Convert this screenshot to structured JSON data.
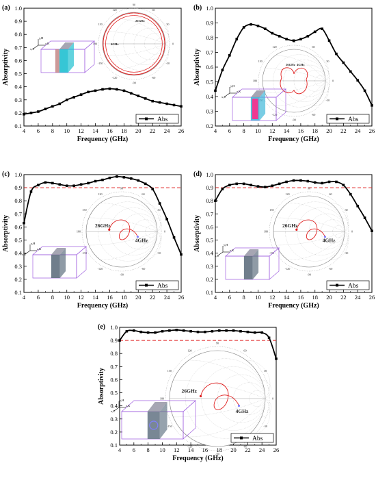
{
  "chart_data": [
    {
      "panel": "(a)",
      "type": "line",
      "xlabel": "Frequency (GHz)",
      "ylabel": "Absorptivity",
      "xlim": [
        4,
        26
      ],
      "ylim": [
        0.1,
        1.0
      ],
      "xticks": [
        "4",
        "6",
        "8",
        "10",
        "12",
        "14",
        "16",
        "18",
        "20",
        "22",
        "24",
        "26"
      ],
      "yticks": [
        "0.1",
        "0.2",
        "0.3",
        "0.4",
        "0.5",
        "0.6",
        "0.7",
        "0.8",
        "0.9",
        "1.0"
      ],
      "legend": "Abs",
      "legend_position": "bottom-right",
      "threshold": null,
      "series": [
        {
          "name": "Abs",
          "x": [
            4,
            5,
            6,
            7,
            8,
            9,
            10,
            11,
            12,
            13,
            14,
            15,
            16,
            17,
            18,
            19,
            20,
            21,
            22,
            23,
            24,
            25,
            26
          ],
          "y": [
            0.19,
            0.2,
            0.21,
            0.23,
            0.25,
            0.27,
            0.3,
            0.32,
            0.34,
            0.36,
            0.37,
            0.38,
            0.385,
            0.38,
            0.37,
            0.35,
            0.33,
            0.31,
            0.29,
            0.28,
            0.27,
            0.26,
            0.25
          ]
        }
      ],
      "smith_labels": [
        "4GHz",
        "26GHz"
      ],
      "axis_letters": [
        "y,H",
        "x,E",
        "z,K"
      ]
    },
    {
      "panel": "(b)",
      "type": "line",
      "xlabel": "Frequency (GHz)",
      "ylabel": "Absorptivity",
      "xlim": [
        4,
        26
      ],
      "ylim": [
        0.2,
        1.0
      ],
      "xticks": [
        "4",
        "6",
        "8",
        "10",
        "12",
        "14",
        "16",
        "18",
        "20",
        "22",
        "24",
        "26"
      ],
      "yticks": [
        "0.2",
        "0.3",
        "0.4",
        "0.5",
        "0.6",
        "0.7",
        "0.8",
        "0.9",
        "1.0"
      ],
      "legend": "Abs",
      "legend_position": "bottom-right",
      "threshold": null,
      "series": [
        {
          "name": "Abs",
          "x": [
            4,
            5,
            6,
            7,
            8,
            9,
            10,
            11,
            12,
            13,
            14,
            15,
            16,
            17,
            18,
            19,
            20,
            21,
            22,
            23,
            24,
            25,
            26
          ],
          "y": [
            0.44,
            0.58,
            0.68,
            0.79,
            0.87,
            0.89,
            0.88,
            0.86,
            0.83,
            0.81,
            0.79,
            0.78,
            0.79,
            0.81,
            0.84,
            0.86,
            0.78,
            0.69,
            0.63,
            0.57,
            0.51,
            0.44,
            0.34
          ]
        }
      ],
      "smith_labels": [
        "26GHz",
        "4GHz"
      ],
      "axis_letters": [
        "y,H",
        "x,E",
        "z,K"
      ]
    },
    {
      "panel": "(c)",
      "type": "line",
      "xlabel": "Frequency (GHz)",
      "ylabel": "Absorptivity",
      "xlim": [
        4,
        26
      ],
      "ylim": [
        0.1,
        1.0
      ],
      "xticks": [
        "4",
        "6",
        "8",
        "10",
        "12",
        "14",
        "16",
        "18",
        "20",
        "22",
        "24",
        "26"
      ],
      "yticks": [
        "0.1",
        "0.2",
        "0.3",
        "0.4",
        "0.5",
        "0.6",
        "0.7",
        "0.8",
        "0.9",
        "1.0"
      ],
      "legend": "Abs",
      "legend_position": "bottom-right",
      "threshold": 0.9,
      "series": [
        {
          "name": "Abs",
          "x": [
            4,
            5,
            6,
            7,
            8,
            9,
            10,
            11,
            12,
            13,
            14,
            15,
            16,
            17,
            18,
            19,
            20,
            21,
            22,
            23,
            24,
            25,
            26
          ],
          "y": [
            0.63,
            0.87,
            0.92,
            0.94,
            0.935,
            0.925,
            0.915,
            0.915,
            0.925,
            0.935,
            0.95,
            0.96,
            0.975,
            0.985,
            0.98,
            0.97,
            0.955,
            0.93,
            0.89,
            0.78,
            0.66,
            0.52,
            0.39
          ]
        }
      ],
      "smith_labels": [
        "26GHz",
        "4GHz"
      ],
      "axis_letters": [
        "y,H",
        "x,E",
        "z,K"
      ]
    },
    {
      "panel": "(d)",
      "type": "line",
      "xlabel": "Frequency (GHz)",
      "ylabel": "Absorptivity",
      "xlim": [
        4,
        26
      ],
      "ylim": [
        0.1,
        1.0
      ],
      "xticks": [
        "4",
        "6",
        "8",
        "10",
        "12",
        "14",
        "16",
        "18",
        "20",
        "22",
        "24",
        "26"
      ],
      "yticks": [
        "0.1",
        "0.2",
        "0.3",
        "0.4",
        "0.5",
        "0.6",
        "0.7",
        "0.8",
        "0.9",
        "1.0"
      ],
      "legend": "Abs",
      "legend_position": "bottom-right",
      "threshold": 0.9,
      "series": [
        {
          "name": "Abs",
          "x": [
            4,
            5,
            6,
            7,
            8,
            9,
            10,
            11,
            12,
            13,
            14,
            15,
            16,
            17,
            18,
            19,
            20,
            21,
            22,
            23,
            24,
            25,
            26
          ],
          "y": [
            0.8,
            0.89,
            0.92,
            0.93,
            0.93,
            0.92,
            0.91,
            0.905,
            0.915,
            0.93,
            0.945,
            0.955,
            0.955,
            0.95,
            0.94,
            0.935,
            0.945,
            0.945,
            0.92,
            0.85,
            0.76,
            0.67,
            0.57
          ]
        }
      ],
      "smith_labels": [
        "26GHz",
        "4GHz"
      ],
      "axis_letters": [
        "y,H",
        "x,E",
        "z,K"
      ]
    },
    {
      "panel": "(e)",
      "type": "line",
      "xlabel": "Frequency (GHz)",
      "ylabel": "Absorptivity",
      "xlim": [
        4,
        26
      ],
      "ylim": [
        0.1,
        1.0
      ],
      "xticks": [
        "4",
        "6",
        "8",
        "10",
        "12",
        "14",
        "16",
        "18",
        "20",
        "22",
        "24",
        "26"
      ],
      "yticks": [
        "0.1",
        "0.2",
        "0.3",
        "0.4",
        "0.5",
        "0.6",
        "0.7",
        "0.8",
        "0.9",
        "1.0"
      ],
      "legend": "Abs",
      "legend_position": "bottom-right",
      "threshold": 0.9,
      "series": [
        {
          "name": "Abs",
          "x": [
            4,
            5,
            6,
            7,
            8,
            9,
            10,
            11,
            12,
            13,
            14,
            15,
            16,
            17,
            18,
            19,
            20,
            21,
            22,
            23,
            24,
            25,
            26
          ],
          "y": [
            0.9,
            0.97,
            0.975,
            0.965,
            0.96,
            0.96,
            0.97,
            0.975,
            0.98,
            0.975,
            0.97,
            0.965,
            0.965,
            0.97,
            0.975,
            0.975,
            0.975,
            0.97,
            0.965,
            0.96,
            0.96,
            0.92,
            0.76
          ]
        }
      ],
      "smith_labels": [
        "26GHz",
        "4GHz"
      ],
      "axis_letters": [
        "y,H",
        "x,E",
        "z,K"
      ]
    }
  ]
}
